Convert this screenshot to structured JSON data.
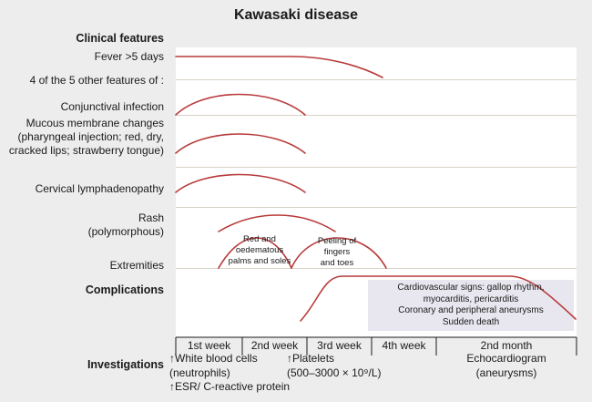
{
  "title": "Kawasaki disease",
  "headers": {
    "clinical": "Clinical features",
    "complications": "Complications",
    "investigations": "Investigations"
  },
  "features": {
    "fever": "Fever >5 days",
    "four_of_five": "4 of the 5 other features of :",
    "conjunctival": "Conjunctival infection",
    "mucous": [
      "Mucous membrane changes",
      "(pharyngeal injection; red, dry,",
      "cracked lips; strawberry tongue)"
    ],
    "cervical": "Cervical lymphadenopathy",
    "rash": [
      "Rash",
      "(polymorphous)"
    ],
    "extremities": "Extremities"
  },
  "inside_labels": {
    "red_palms": [
      "Red and",
      "oedematous",
      "palms and soles"
    ],
    "peeling": [
      "Peeling of",
      "fingers",
      "and toes"
    ]
  },
  "cardio": [
    "Cardiovascular signs: gallop rhythm,",
    "myocarditis, pericarditis",
    "Coronary and peripheral aneurysms",
    "Sudden death"
  ],
  "timeline": [
    "1st week",
    "2nd week",
    "3rd week",
    "4th week",
    "2nd month"
  ],
  "investigations": {
    "wbc": [
      "↑White blood cells",
      "(neutrophils)",
      "↑ESR/ C-reactive protein"
    ],
    "platelets": [
      "↑Platelets",
      "(500–3000 × 10⁹/L)"
    ],
    "echo": [
      "Echocardiogram",
      "(aneurysms)"
    ]
  },
  "colors": {
    "curve": "#b83a3a",
    "plot_bg": "#ffffff",
    "page_bg": "#eeeded",
    "grid": "#d8d2c6",
    "cardio_box": "#e8e6ee"
  }
}
